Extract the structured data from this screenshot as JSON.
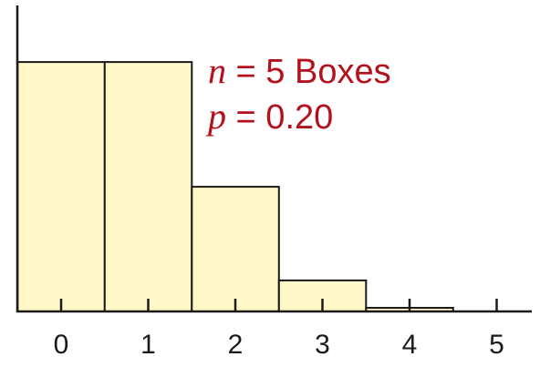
{
  "chart_data": {
    "type": "bar",
    "categories": [
      "0",
      "1",
      "2",
      "3",
      "4",
      "5"
    ],
    "values": [
      0.41,
      0.41,
      0.205,
      0.051,
      0.006,
      0.0003
    ],
    "xlabel": "",
    "ylabel": "",
    "ylim": [
      0,
      0.5
    ],
    "grid": false,
    "annotations": [
      {
        "var": "n",
        "text": " = 5 Boxes"
      },
      {
        "var": "p",
        "text": " = 0.20"
      }
    ],
    "colors": {
      "bar_fill": "#fff7c8",
      "bar_stroke": "#1a1a1a",
      "axis": "#1a1a1a",
      "annotation": "#b3121d"
    }
  }
}
